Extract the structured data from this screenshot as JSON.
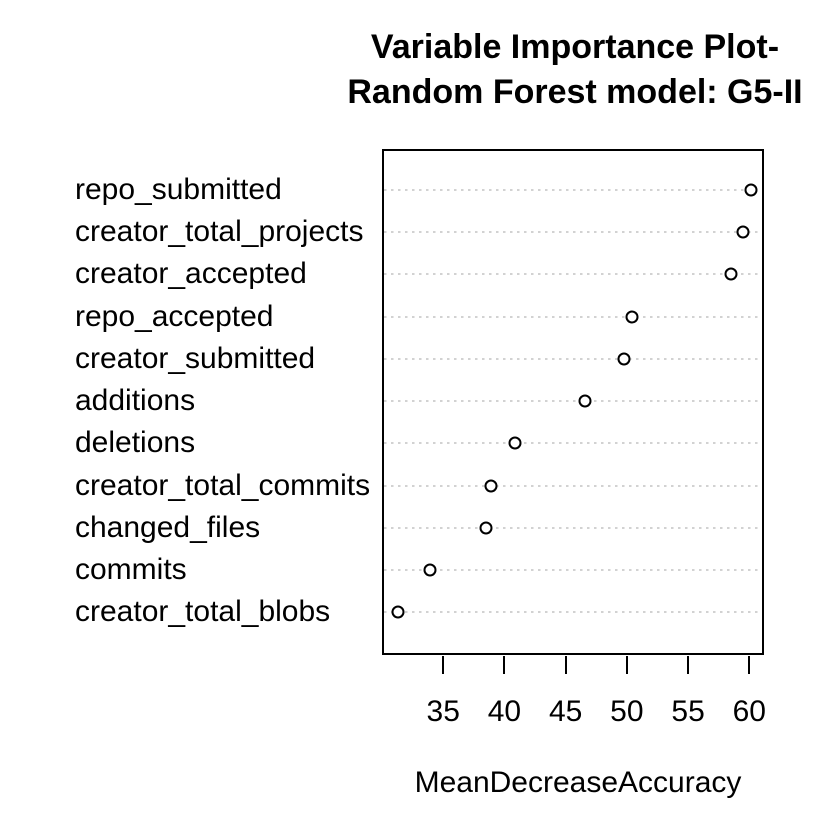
{
  "chart_data": {
    "type": "scatter",
    "subtype": "dot-chart-variable-importance",
    "title_line1": "Variable Importance Plot-",
    "title_line2": "Random Forest model: G5-II",
    "xlabel": "MeanDecreaseAccuracy",
    "categories": [
      "repo_submitted",
      "creator_total_projects",
      "creator_accepted",
      "repo_accepted",
      "creator_submitted",
      "additions",
      "deletions",
      "creator_total_commits",
      "changed_files",
      "commits",
      "creator_total_blobs"
    ],
    "values": [
      60.1,
      59.5,
      58.5,
      50.4,
      49.8,
      46.6,
      40.9,
      38.9,
      38.5,
      33.9,
      31.3
    ],
    "row_order": "top-to-bottom",
    "xticks": [
      35,
      40,
      45,
      50,
      55,
      60
    ],
    "xlim": [
      30.0,
      61.2
    ],
    "grid": "dotted-horizontal",
    "legend": "none",
    "colors": {
      "point_stroke": "#000000",
      "point_fill": "#ffffff",
      "grid": "#d2d2d2",
      "text": "#000000",
      "background": "#ffffff"
    }
  }
}
